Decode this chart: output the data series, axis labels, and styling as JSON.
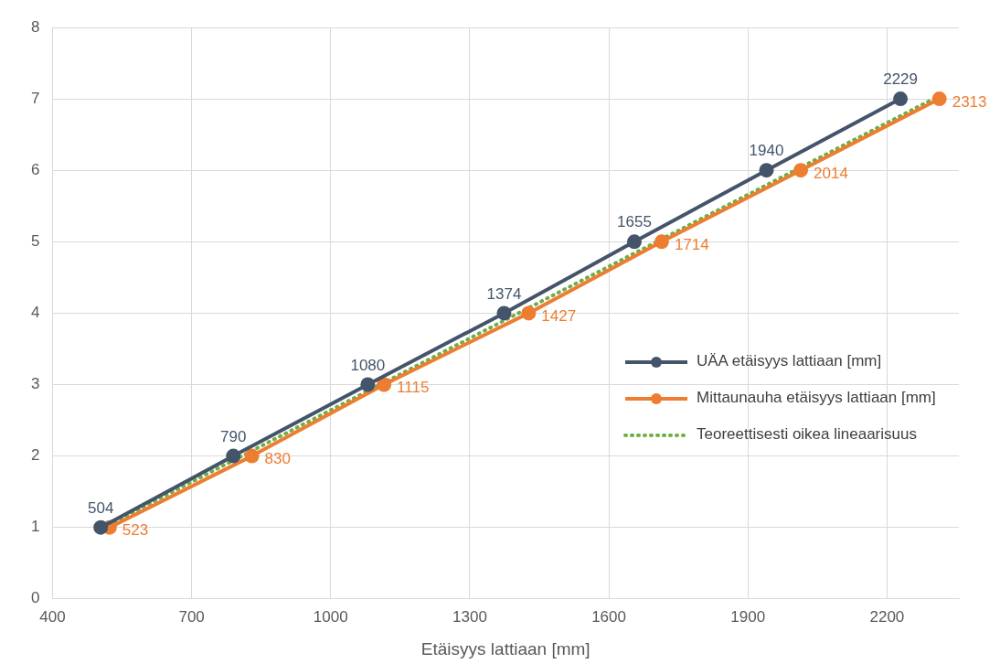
{
  "chart_data": {
    "type": "line",
    "xlabel": "Etäisyys lattiaan [mm]",
    "xlim": [
      400,
      2355
    ],
    "xticks": [
      400,
      700,
      1000,
      1300,
      1600,
      1900,
      2200
    ],
    "ylim": [
      0,
      8
    ],
    "yticks": [
      0,
      1,
      2,
      3,
      4,
      5,
      6,
      7,
      8
    ],
    "grid": true,
    "legend": "right",
    "marker": "circle",
    "line_style": "solid",
    "series": [
      {
        "name": "UÄA etäisyys lattiaan [mm]",
        "color": "#44546a",
        "x": [
          504,
          790,
          1080,
          1374,
          1655,
          1940,
          2229
        ],
        "values": [
          1,
          2,
          3,
          4,
          5,
          6,
          7
        ]
      },
      {
        "name": "Mittaunauha etäisyys lattiaan [mm]",
        "color": "#ed7d31",
        "x": [
          523,
          830,
          1115,
          1427,
          1714,
          2014,
          2313
        ],
        "values": [
          1,
          2,
          3,
          4,
          5,
          6,
          7
        ]
      },
      {
        "name": "Teoreettisesti oikea lineaarisuus",
        "color": "#70ad47",
        "x": [
          510,
          2300
        ],
        "values": [
          1,
          7
        ],
        "marker": "none",
        "line_style": "dotted"
      }
    ],
    "annotations": [
      {
        "text": "504",
        "x": 504,
        "y": 1
      },
      {
        "text": "790",
        "x": 790,
        "y": 2
      },
      {
        "text": "1080",
        "x": 1080,
        "y": 3
      },
      {
        "text": "1374",
        "x": 1374,
        "y": 4
      },
      {
        "text": "1655",
        "x": 1655,
        "y": 5
      },
      {
        "text": "1940",
        "x": 1940,
        "y": 6
      },
      {
        "text": "2229",
        "x": 2229,
        "y": 7
      },
      {
        "text": "523",
        "x": 523,
        "y": 1
      },
      {
        "text": "830",
        "x": 830,
        "y": 2
      },
      {
        "text": "1115",
        "x": 1115,
        "y": 3
      },
      {
        "text": "1427",
        "x": 1427,
        "y": 4
      },
      {
        "text": "1714",
        "x": 1714,
        "y": 5
      },
      {
        "text": "2014",
        "x": 2014,
        "y": 6
      },
      {
        "text": "2313",
        "x": 2313,
        "y": 7
      }
    ]
  }
}
